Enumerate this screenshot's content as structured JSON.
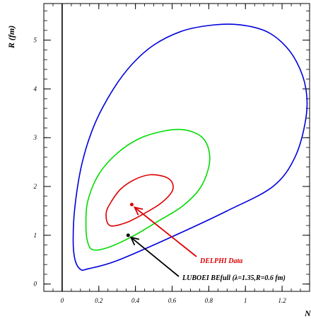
{
  "chart_data": {
    "type": "line",
    "title": "",
    "xlabel": "N",
    "ylabel": "R (fm)",
    "xlim": [
      -0.1,
      1.35
    ],
    "ylim": [
      -0.15,
      5.75
    ],
    "grid": false,
    "x_ticks": [
      "0",
      "0.2",
      "0.4",
      "0.6",
      "0.8",
      "1",
      "1.2"
    ],
    "y_ticks": [
      "0",
      "1",
      "2",
      "3",
      "4",
      "5"
    ],
    "series": [
      {
        "color": "#0000dd",
        "type": "closed-contour",
        "points": [
          [
            0.1,
            0.3
          ],
          [
            0.14,
            0.31
          ],
          [
            0.3,
            0.48
          ],
          [
            0.6,
            0.97
          ],
          [
            0.9,
            1.5
          ],
          [
            1.15,
            2.0
          ],
          [
            1.27,
            2.6
          ],
          [
            1.33,
            3.4
          ],
          [
            1.33,
            4.0
          ],
          [
            1.28,
            4.55
          ],
          [
            1.2,
            4.95
          ],
          [
            1.1,
            5.2
          ],
          [
            0.95,
            5.32
          ],
          [
            0.8,
            5.3
          ],
          [
            0.65,
            5.18
          ],
          [
            0.5,
            4.9
          ],
          [
            0.38,
            4.5
          ],
          [
            0.28,
            4.0
          ],
          [
            0.18,
            3.3
          ],
          [
            0.11,
            2.5
          ],
          [
            0.07,
            1.6
          ],
          [
            0.06,
            0.9
          ],
          [
            0.07,
            0.5
          ]
        ]
      },
      {
        "color": "#00dd00",
        "type": "closed-contour",
        "points": [
          [
            0.17,
            0.7
          ],
          [
            0.25,
            0.75
          ],
          [
            0.38,
            0.97
          ],
          [
            0.52,
            1.28
          ],
          [
            0.65,
            1.58
          ],
          [
            0.75,
            1.95
          ],
          [
            0.8,
            2.4
          ],
          [
            0.8,
            2.75
          ],
          [
            0.76,
            3.02
          ],
          [
            0.67,
            3.16
          ],
          [
            0.56,
            3.14
          ],
          [
            0.42,
            2.98
          ],
          [
            0.3,
            2.68
          ],
          [
            0.2,
            2.25
          ],
          [
            0.14,
            1.7
          ],
          [
            0.13,
            1.2
          ],
          [
            0.14,
            0.85
          ]
        ]
      },
      {
        "color": "#dd0000",
        "type": "closed-contour",
        "points": [
          [
            0.26,
            1.2
          ],
          [
            0.35,
            1.26
          ],
          [
            0.45,
            1.45
          ],
          [
            0.54,
            1.66
          ],
          [
            0.6,
            1.9
          ],
          [
            0.6,
            2.08
          ],
          [
            0.56,
            2.2
          ],
          [
            0.48,
            2.24
          ],
          [
            0.4,
            2.15
          ],
          [
            0.32,
            1.95
          ],
          [
            0.27,
            1.7
          ],
          [
            0.24,
            1.45
          ]
        ]
      },
      {
        "name": "DELPHI Data",
        "color": "#dd0000",
        "type": "point",
        "points": [
          [
            0.38,
            1.63
          ]
        ]
      },
      {
        "name": "LUBOEI BEfull (λ=1.35,R=0.6 fm)",
        "color": "#000000",
        "type": "point",
        "points": [
          [
            0.36,
            1.0
          ]
        ]
      }
    ],
    "annotations": [
      {
        "text": "DELPHI Data",
        "color": "#dd0000",
        "points_to": [
          0.38,
          1.63
        ]
      },
      {
        "text": "LUBOEI BEfull (λ=1.35,R=0.6 fm)",
        "color": "#000000",
        "points_to": [
          0.36,
          1.0
        ]
      }
    ]
  }
}
